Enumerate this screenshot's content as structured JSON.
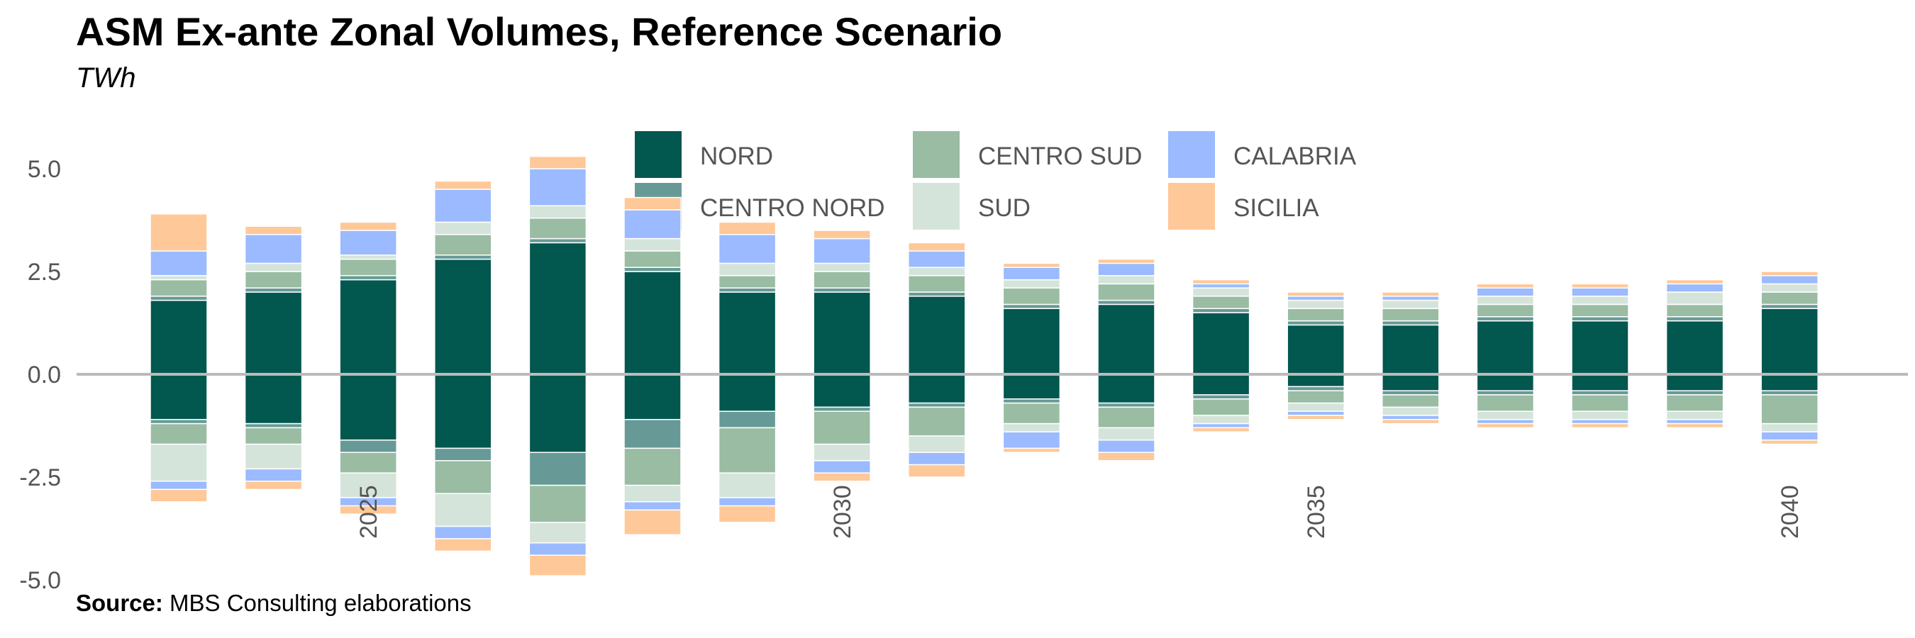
{
  "title": "ASM Ex-ante Zonal Volumes, Reference Scenario",
  "subtitle": "TWh",
  "source": {
    "label": "Source:",
    "text": "MBS Consulting elaborations"
  },
  "legend": [
    {
      "name": "NORD",
      "color": "#02574f"
    },
    {
      "name": "CENTRO NORD",
      "color": "#679a96"
    },
    {
      "name": "CENTRO SUD",
      "color": "#99bca3"
    },
    {
      "name": "SUD",
      "color": "#d5e4da"
    },
    {
      "name": "CALABRIA",
      "color": "#9bbaff"
    },
    {
      "name": "SICILIA",
      "color": "#ffc898"
    }
  ],
  "chart_data": {
    "type": "bar",
    "stacked": true,
    "diverging": true,
    "x": [
      2023,
      2024,
      2025,
      2026,
      2027,
      2028,
      2029,
      2030,
      2031,
      2032,
      2033,
      2034,
      2035,
      2036,
      2037,
      2038,
      2039,
      2040
    ],
    "xtick_labels": [
      "2025",
      "2030",
      "2035",
      "2040"
    ],
    "xticks": [
      2025,
      2030,
      2035,
      2040
    ],
    "ytick_labels": [
      "5.0",
      "2.5",
      "0.0",
      "-2.5",
      "-5.0"
    ],
    "yticks": [
      5.0,
      2.5,
      0.0,
      -2.5,
      -5.0
    ],
    "ylim": [
      -5.3,
      5.2
    ],
    "zero_line": true,
    "grid": false,
    "legend_position": "top",
    "series": [
      {
        "name": "NORD",
        "color": "#02574f",
        "positive": [
          1.8,
          2.0,
          2.3,
          2.8,
          3.2,
          2.5,
          2.0,
          2.0,
          1.9,
          1.6,
          1.7,
          1.5,
          1.2,
          1.2,
          1.3,
          1.3,
          1.3,
          1.6
        ],
        "negative": [
          -1.1,
          -1.2,
          -1.6,
          -1.8,
          -1.9,
          -1.1,
          -0.9,
          -0.8,
          -0.7,
          -0.6,
          -0.7,
          -0.5,
          -0.3,
          -0.4,
          -0.4,
          -0.4,
          -0.4,
          -0.4
        ]
      },
      {
        "name": "CENTRO NORD",
        "color": "#679a96",
        "positive": [
          0.1,
          0.1,
          0.1,
          0.1,
          0.1,
          0.1,
          0.1,
          0.1,
          0.1,
          0.1,
          0.1,
          0.1,
          0.1,
          0.1,
          0.1,
          0.1,
          0.1,
          0.1
        ],
        "negative": [
          -0.1,
          -0.1,
          -0.3,
          -0.3,
          -0.8,
          -0.7,
          -0.4,
          -0.1,
          -0.1,
          -0.1,
          -0.1,
          -0.1,
          -0.1,
          -0.1,
          -0.1,
          -0.1,
          -0.1,
          -0.1
        ]
      },
      {
        "name": "CENTRO SUD",
        "color": "#99bca3",
        "positive": [
          0.4,
          0.4,
          0.4,
          0.5,
          0.5,
          0.4,
          0.3,
          0.4,
          0.4,
          0.4,
          0.4,
          0.3,
          0.3,
          0.3,
          0.3,
          0.3,
          0.3,
          0.3
        ],
        "negative": [
          -0.5,
          -0.4,
          -0.5,
          -0.8,
          -0.9,
          -0.9,
          -1.1,
          -0.8,
          -0.7,
          -0.5,
          -0.5,
          -0.4,
          -0.3,
          -0.3,
          -0.4,
          -0.4,
          -0.4,
          -0.7
        ]
      },
      {
        "name": "SUD",
        "color": "#d5e4da",
        "positive": [
          0.1,
          0.2,
          0.1,
          0.3,
          0.3,
          0.3,
          0.3,
          0.2,
          0.2,
          0.2,
          0.2,
          0.2,
          0.2,
          0.2,
          0.2,
          0.2,
          0.3,
          0.2
        ],
        "negative": [
          -0.9,
          -0.6,
          -0.6,
          -0.8,
          -0.5,
          -0.4,
          -0.6,
          -0.4,
          -0.4,
          -0.2,
          -0.3,
          -0.2,
          -0.2,
          -0.2,
          -0.2,
          -0.2,
          -0.2,
          -0.2
        ]
      },
      {
        "name": "CALABRIA",
        "color": "#9bbaff",
        "positive": [
          0.6,
          0.7,
          0.6,
          0.8,
          0.9,
          0.7,
          0.7,
          0.6,
          0.4,
          0.3,
          0.3,
          0.1,
          0.1,
          0.1,
          0.2,
          0.2,
          0.2,
          0.2
        ],
        "negative": [
          -0.2,
          -0.3,
          -0.2,
          -0.3,
          -0.3,
          -0.2,
          -0.2,
          -0.3,
          -0.3,
          -0.4,
          -0.3,
          -0.1,
          -0.1,
          -0.1,
          -0.1,
          -0.1,
          -0.1,
          -0.2
        ]
      },
      {
        "name": "SICILIA",
        "color": "#ffc898",
        "positive": [
          0.9,
          0.2,
          0.2,
          0.2,
          0.3,
          0.3,
          0.3,
          0.2,
          0.2,
          0.1,
          0.1,
          0.1,
          0.1,
          0.1,
          0.1,
          0.1,
          0.1,
          0.1
        ],
        "negative": [
          -0.3,
          -0.2,
          -0.2,
          -0.3,
          -0.5,
          -0.6,
          -0.4,
          -0.2,
          -0.3,
          -0.1,
          -0.2,
          -0.1,
          -0.1,
          -0.1,
          -0.1,
          -0.1,
          -0.1,
          -0.1
        ]
      }
    ]
  }
}
